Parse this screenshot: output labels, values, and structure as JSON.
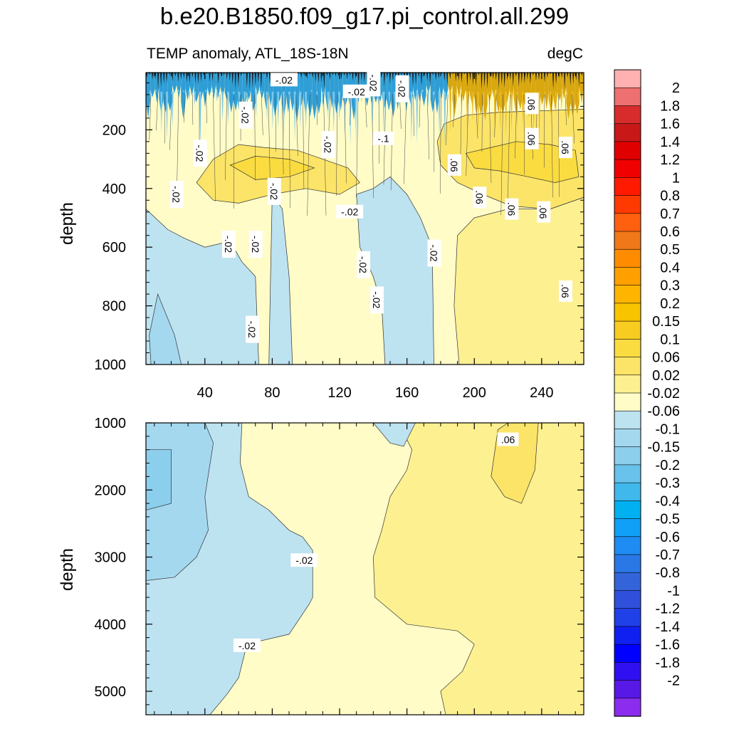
{
  "title": "b.e20.B1850.f09_g17.pi_control.all.299",
  "subtitle_left": "TEMP anomaly, ATL_18S-18N",
  "subtitle_right": "degC",
  "chart_data": [
    {
      "type": "contour",
      "panel": "upper",
      "xlabel": "",
      "ylabel": "depth",
      "xlim": [
        5,
        265
      ],
      "ylim": [
        1000,
        5
      ],
      "y_inverted": true,
      "x_ticks": [
        40,
        80,
        120,
        160,
        200,
        240
      ],
      "x_tick_labels": [
        "40",
        "80",
        "120",
        "160",
        "200",
        "240"
      ],
      "y_ticks": [
        200,
        400,
        600,
        800,
        1000
      ],
      "y_tick_labels": [
        "200",
        "400",
        "600",
        "800",
        "1000"
      ],
      "regions": [
        {
          "value": -0.04,
          "x_range": [
            5,
            35
          ]
        },
        {
          "value": -0.08,
          "x_range": [
            10,
            20
          ]
        },
        {
          "value": 0.0,
          "x_range": [
            35,
            75
          ]
        },
        {
          "value": -0.04,
          "x_range": [
            75,
            95
          ]
        },
        {
          "value": 0.0,
          "x_range": [
            95,
            135
          ]
        },
        {
          "value": -0.04,
          "x_range": [
            135,
            175
          ]
        },
        {
          "value": 0.0,
          "x_range": [
            175,
            190
          ]
        },
        {
          "value": 0.04,
          "x_range": [
            190,
            265
          ]
        }
      ],
      "contour_labels": [
        {
          "text": "-.02",
          "x": 87,
          "y": 30
        },
        {
          "text": "-.02",
          "x": 130,
          "y": 70
        },
        {
          "text": "-.02",
          "x": 140,
          "y": 40
        },
        {
          "text": "-.02",
          "x": 157,
          "y": 60
        },
        {
          "text": "-.02",
          "x": 64,
          "y": 150
        },
        {
          "text": "-.02",
          "x": 37,
          "y": 280
        },
        {
          "text": "-.02",
          "x": 23,
          "y": 420
        },
        {
          "text": "-.02",
          "x": 113,
          "y": 250
        },
        {
          "text": "-.1",
          "x": 146,
          "y": 230
        },
        {
          "text": "-.02",
          "x": 81,
          "y": 410
        },
        {
          "text": "-.02",
          "x": 126,
          "y": 480
        },
        {
          "text": "-.02",
          "x": 54,
          "y": 590
        },
        {
          "text": "-.02",
          "x": 70,
          "y": 590
        },
        {
          "text": "-.02",
          "x": 134,
          "y": 660
        },
        {
          "text": "-.02",
          "x": 142,
          "y": 780
        },
        {
          "text": "-.02",
          "x": 176,
          "y": 620
        },
        {
          "text": "-.02",
          "x": 68,
          "y": 880
        },
        {
          "text": ".06",
          "x": 234,
          "y": 110
        },
        {
          "text": ".06",
          "x": 234,
          "y": 230
        },
        {
          "text": ".06",
          "x": 254,
          "y": 260
        },
        {
          "text": ".06",
          "x": 188,
          "y": 320
        },
        {
          "text": ".06",
          "x": 203,
          "y": 430
        },
        {
          "text": ".06",
          "x": 222,
          "y": 470
        },
        {
          "text": ".06",
          "x": 241,
          "y": 480
        },
        {
          "text": ".06",
          "x": 254,
          "y": 750
        }
      ]
    },
    {
      "type": "contour",
      "panel": "lower",
      "xlabel": "",
      "ylabel": "depth",
      "xlim": [
        5,
        265
      ],
      "ylim": [
        5350,
        1000
      ],
      "y_inverted": true,
      "x_ticks": [
        40,
        80,
        120,
        160,
        200,
        240
      ],
      "y_ticks": [
        1000,
        2000,
        3000,
        4000,
        5000
      ],
      "y_tick_labels": [
        "1000",
        "2000",
        "3000",
        "4000",
        "5000"
      ],
      "regions": [
        {
          "value": -0.08,
          "x_range": [
            5,
            40
          ]
        },
        {
          "value": -0.04,
          "x_range": [
            5,
            100
          ]
        },
        {
          "value": 0.0,
          "x_range": [
            60,
            200
          ]
        },
        {
          "value": 0.04,
          "x_range": [
            150,
            265
          ]
        },
        {
          "value": 0.08,
          "x_range": [
            210,
            235
          ]
        }
      ],
      "contour_labels": [
        {
          "text": "-.02",
          "x": 99,
          "y": 3050
        },
        {
          "text": "-.02",
          "x": 65,
          "y": 4320
        },
        {
          "text": ".06",
          "x": 220,
          "y": 1250
        }
      ]
    }
  ],
  "colorbar": {
    "colors": [
      "#ffb0b0",
      "#ee7070",
      "#d82c2c",
      "#c81818",
      "#e00000",
      "#f00000",
      "#ff1a00",
      "#ff3a00",
      "#ff6010",
      "#f07818",
      "#ff8c00",
      "#ffa000",
      "#ffb400",
      "#f8c400",
      "#f8cc20",
      "#fadc40",
      "#fbe468",
      "#fdf090",
      "#fffcc8",
      "#bde2f0",
      "#a4d8ef",
      "#8ccfed",
      "#68c2ec",
      "#40b8ec",
      "#00b0f0",
      "#10a0f8",
      "#1e8cf2",
      "#2a78e6",
      "#3464da",
      "#3050dc",
      "#2040e8",
      "#1020f0",
      "#0000ff",
      "#3010f0",
      "#5818e6",
      "#8c2cee"
    ],
    "labels": [
      "2",
      "1.8",
      "1.6",
      "1.4",
      "1.2",
      "1",
      "0.8",
      "0.7",
      "0.6",
      "0.5",
      "0.4",
      "0.3",
      "0.2",
      "0.15",
      "0.1",
      "0.06",
      "0.02",
      "-0.02",
      "-0.06",
      "-0.1",
      "-0.15",
      "-0.2",
      "-0.3",
      "-0.4",
      "-0.5",
      "-0.6",
      "-0.7",
      "-0.8",
      "-1",
      "-1.2",
      "-1.4",
      "-1.6",
      "-1.8",
      "-2"
    ]
  }
}
